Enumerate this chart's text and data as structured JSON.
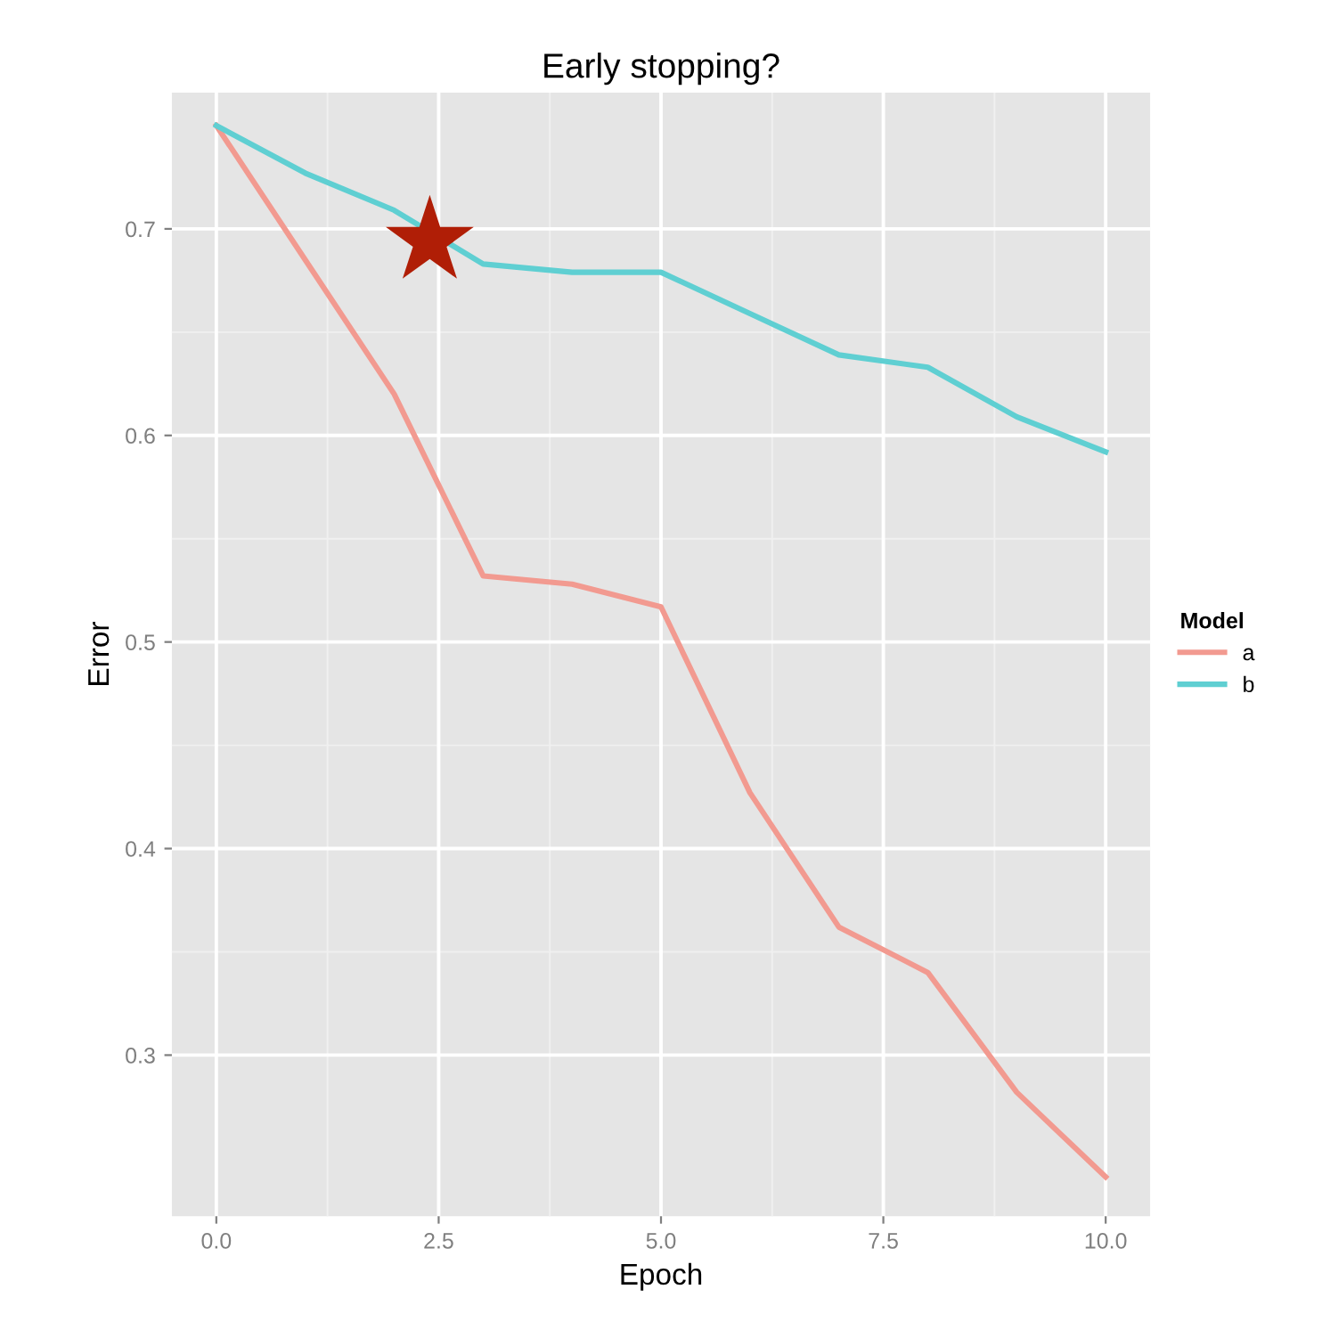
{
  "chart_data": {
    "type": "line",
    "title": "Early stopping?",
    "xlabel": "Epoch",
    "ylabel": "Error",
    "legend_title": "Model",
    "x": [
      0,
      1,
      2,
      3,
      4,
      5,
      6,
      7,
      8,
      9,
      10
    ],
    "series": [
      {
        "name": "a",
        "color": "#f29a90",
        "values": [
          0.75,
          0.685,
          0.62,
          0.532,
          0.528,
          0.517,
          0.427,
          0.362,
          0.34,
          0.282,
          0.241
        ]
      },
      {
        "name": "b",
        "color": "#5fcfd2",
        "values": [
          0.75,
          0.727,
          0.709,
          0.683,
          0.679,
          0.679,
          0.659,
          0.639,
          0.633,
          0.609,
          0.592
        ]
      },
      {
        "type": "scatter",
        "marker": "star",
        "color": "#b01e06",
        "x": [
          2.4
        ],
        "values": [
          0.694
        ]
      }
    ],
    "xlim": [
      -0.5,
      10.5
    ],
    "ylim": [
      0.222,
      0.766
    ],
    "xticks": [
      {
        "value": 0,
        "label": "0.0"
      },
      {
        "value": 2.5,
        "label": "2.5"
      },
      {
        "value": 5,
        "label": "5.0"
      },
      {
        "value": 7.5,
        "label": "7.5"
      },
      {
        "value": 10,
        "label": "10.0"
      }
    ],
    "yticks": [
      0.3,
      0.4,
      0.5,
      0.6,
      0.7
    ],
    "grid": true,
    "legend": "right",
    "marker": "none",
    "line_style": "solid"
  }
}
